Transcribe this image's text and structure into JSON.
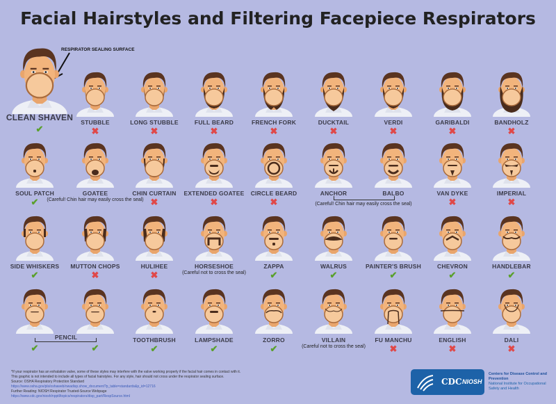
{
  "title": "Facial Hairstyles and Filtering Facepiece Respirators",
  "callout": "RESPIRATOR SEALING SURFACE",
  "colors": {
    "background": "#b5b9e2",
    "ok": "#5aa02c",
    "no": "#e04848",
    "cdc_blue": "#1d62a8"
  },
  "marks": {
    "ok": "✔",
    "no": "✖"
  },
  "items": [
    {
      "label": "CLEAN SHAVEN",
      "status": "ok"
    },
    {
      "label": "STUBBLE",
      "status": "no"
    },
    {
      "label": "LONG STUBBLE",
      "status": "no"
    },
    {
      "label": "FULL BEARD",
      "status": "no"
    },
    {
      "label": "FRENCH FORK",
      "status": "no"
    },
    {
      "label": "DUCKTAIL",
      "status": "no"
    },
    {
      "label": "VERDI",
      "status": "no"
    },
    {
      "label": "GARIBALDI",
      "status": "no"
    },
    {
      "label": "BANDHOLZ",
      "status": "no"
    },
    {
      "label": "SOUL PATCH",
      "status": "ok"
    },
    {
      "label": "GOATEE",
      "status": null,
      "note": "(Careful! Chin hair may easily cross the seal)"
    },
    {
      "label": "CHIN CURTAIN",
      "status": "no"
    },
    {
      "label": "EXTENDED GOATEE",
      "status": "no"
    },
    {
      "label": "CIRCLE BEARD",
      "status": "no"
    },
    {
      "label": "ANCHOR",
      "status": null
    },
    {
      "label": "BALBO",
      "status": null
    },
    {
      "label": "VAN DYKE",
      "status": "no"
    },
    {
      "label": "IMPERIAL",
      "status": "no"
    },
    {
      "label": "SIDE WHISKERS",
      "status": "ok"
    },
    {
      "label": "MUTTON CHOPS",
      "status": "no"
    },
    {
      "label": "HULIHEE",
      "status": "no"
    },
    {
      "label": "HORSESHOE",
      "status": null,
      "note": "(Careful not to cross the seal)"
    },
    {
      "label": "ZAPPA",
      "status": "ok"
    },
    {
      "label": "WALRUS",
      "status": "ok"
    },
    {
      "label": "PAINTER'S BRUSH",
      "status": "ok"
    },
    {
      "label": "CHEVRON",
      "status": "ok"
    },
    {
      "label": "HANDLEBAR",
      "status": "ok"
    },
    {
      "label": "PENCIL",
      "status": "ok"
    },
    {
      "label": "TOOTHBRUSH",
      "status": "ok"
    },
    {
      "label": "LAMPSHADE",
      "status": "ok"
    },
    {
      "label": "ZORRO",
      "status": "ok"
    },
    {
      "label": "VILLAIN",
      "status": null,
      "note": "(Careful not to cross the seal)"
    },
    {
      "label": "FU MANCHU",
      "status": "no"
    },
    {
      "label": "ENGLISH",
      "status": "no"
    },
    {
      "label": "DALI",
      "status": "no"
    }
  ],
  "group_notes": {
    "anchor_balbo": "(Careful! Chin hair may easily cross the seal)"
  },
  "footer": {
    "line1": "*If your respirator has an exhalation valve, some of these styles may interfere with the valve working properly if the facial hair comes in contact with it.",
    "line2": "This graphic is not intended to include all types of facial hairstyles. For any style, hair should not cross under the respirator sealing surface.",
    "source": "Source: OSHA Respiratory Protection Standard",
    "source_url": "https://www.osha.gov/pls/oshaweb/owadisp.show_document?p_table=standards&p_id=12716",
    "further": "Further Reading: NIOSH Respirator Trusted-Source Webpage",
    "further_url": "https://www.cdc.gov/niosh/npptl/topics/respirators/disp_part/RespSource.html"
  },
  "logo": {
    "cdc": "CDC",
    "niosh": "NIOSH",
    "org1": "Centers for Disease Control and Prevention",
    "org2": "National Institute for Occupational Safety and Health"
  }
}
